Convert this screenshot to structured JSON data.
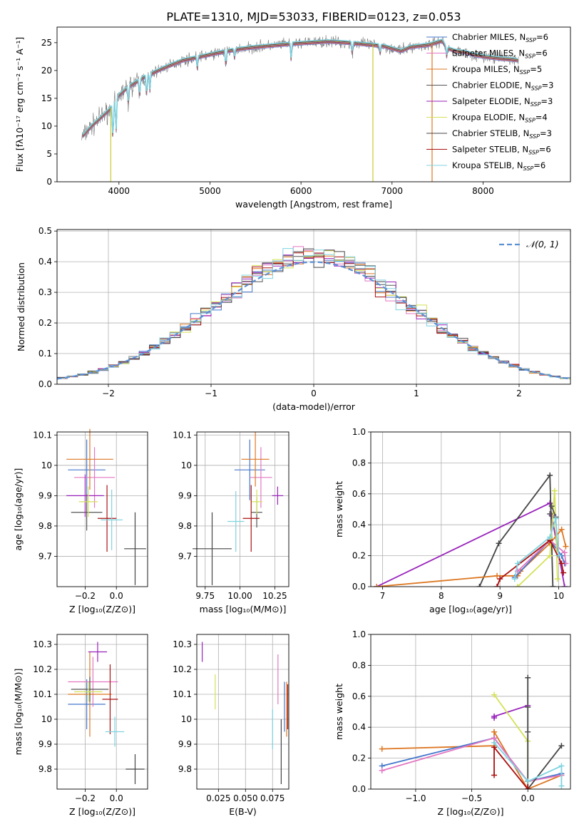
{
  "title": "PLATE=1310, MJD=53033, FIBERID=0123, z=0.053",
  "colors": {
    "Chabrier MILES": "#4477cc",
    "Salpeter MILES": "#e377c2",
    "Kroupa MILES": "#dd7722",
    "Chabrier ELODIE": "#555555",
    "Salpeter ELODIE": "#9922bb",
    "Kroupa ELODIE": "#d4e157",
    "Chabrier STELIB": "#444444",
    "Salpeter STELIB": "#aa1111",
    "Kroupa STELIB": "#7fd3e0",
    "normal": "#5b8fd6"
  },
  "chart_data": [
    {
      "id": "spectrum",
      "type": "line",
      "xlabel": "wavelength [Angstrom, rest frame]",
      "ylabel": "Flux [fλ10⁻¹⁷ erg cm⁻² s⁻¹ A⁻¹]",
      "xlim": [
        3320,
        8960
      ],
      "ylim": [
        0,
        27.8
      ],
      "xticks": [
        4000,
        5000,
        6000,
        7000,
        8000
      ],
      "yticks": [
        0,
        5,
        10,
        15,
        20,
        25
      ],
      "legend_position": "top-right",
      "continuum": [
        [
          3590,
          8
        ],
        [
          3700,
          10
        ],
        [
          3800,
          11.5
        ],
        [
          3900,
          13
        ],
        [
          4000,
          15.5
        ],
        [
          4100,
          17
        ],
        [
          4300,
          19
        ],
        [
          4500,
          20.5
        ],
        [
          4700,
          21.8
        ],
        [
          4900,
          22.5
        ],
        [
          5100,
          23.2
        ],
        [
          5300,
          23.8
        ],
        [
          5500,
          24.2
        ],
        [
          5700,
          24.5
        ],
        [
          5900,
          24.8
        ],
        [
          6100,
          25
        ],
        [
          6300,
          25.2
        ],
        [
          6500,
          25
        ],
        [
          6700,
          24.7
        ],
        [
          6900,
          24.4
        ],
        [
          7100,
          23.5
        ],
        [
          7200,
          24.2
        ],
        [
          7400,
          24.6
        ],
        [
          7550,
          25.3
        ],
        [
          7600,
          24
        ],
        [
          7700,
          23.5
        ],
        [
          7800,
          23.3
        ],
        [
          7900,
          22.8
        ],
        [
          8000,
          22.5
        ],
        [
          8100,
          22.3
        ],
        [
          8200,
          22.1
        ],
        [
          8300,
          22
        ],
        [
          8390,
          21.8
        ]
      ],
      "series": [
        {
          "name": "Chabrier MILES, N",
          "sub": "SSP",
          "val": "=6"
        },
        {
          "name": "Salpeter MILES, N",
          "sub": "SSP",
          "val": "=6"
        },
        {
          "name": "Kroupa MILES, N",
          "sub": "SSP",
          "val": "=5"
        },
        {
          "name": "Chabrier ELODIE, N",
          "sub": "SSP",
          "val": "=3"
        },
        {
          "name": "Salpeter ELODIE, N",
          "sub": "SSP",
          "val": "=3"
        },
        {
          "name": "Kroupa ELODIE, N",
          "sub": "SSP",
          "val": "=4"
        },
        {
          "name": "Chabrier STELIB, N",
          "sub": "SSP",
          "val": "=3"
        },
        {
          "name": "Salpeter STELIB, N",
          "sub": "SSP",
          "val": "=6"
        },
        {
          "name": "Kroupa STELIB, N",
          "sub": "SSP",
          "val": "=6"
        }
      ]
    },
    {
      "id": "residuals",
      "type": "histogram",
      "xlabel": "(data-model)/error",
      "ylabel": "Normed distribution",
      "xlim": [
        -2.5,
        2.5
      ],
      "ylim": [
        0,
        0.505
      ],
      "xticks": [
        -2,
        -1,
        0,
        1,
        2
      ],
      "xticklabels": [
        "−2",
        "−1",
        "0",
        "1",
        "2"
      ],
      "yticks": [
        0,
        0.1,
        0.2,
        0.3,
        0.4,
        0.5
      ],
      "yticklabels": [
        "0.0",
        "0.1",
        "0.2",
        "0.3",
        "0.4",
        "0.5"
      ],
      "bin_width": 0.1,
      "legend": "𝒩(0, 1)",
      "legend_position": "top-right"
    },
    {
      "id": "age_vs_Z",
      "type": "errorbar",
      "xlabel": "Z [log₁₀(Z/Z⊙)]",
      "ylabel": "age  [log₁₀(age/yr)]",
      "xlim": [
        -0.38,
        0.2
      ],
      "ylim": [
        9.6,
        10.11
      ],
      "xticks": [
        -0.2,
        0.0
      ],
      "xticklabels": [
        "−0.2",
        "0.0"
      ],
      "yticks": [
        9.7,
        9.8,
        9.9,
        10.0,
        10.1
      ],
      "points": [
        {
          "series": "Chabrier MILES",
          "x": -0.19,
          "xerr": 0.12,
          "y": 9.985,
          "yerr": 0.1
        },
        {
          "series": "Salpeter MILES",
          "x": -0.14,
          "xerr": 0.13,
          "y": 9.96,
          "yerr": 0.1
        },
        {
          "series": "Kroupa MILES",
          "x": -0.17,
          "xerr": 0.15,
          "y": 10.02,
          "yerr": 0.1
        },
        {
          "series": "Chabrier ELODIE",
          "x": -0.19,
          "xerr": 0.1,
          "y": 9.845,
          "yerr": 0.06
        },
        {
          "series": "Salpeter ELODIE",
          "x": -0.2,
          "xerr": 0.12,
          "y": 9.9,
          "yerr": 0.07
        },
        {
          "series": "Kroupa ELODIE",
          "x": -0.18,
          "xerr": 0.06,
          "y": 9.88,
          "yerr": 0.05
        },
        {
          "series": "Chabrier STELIB",
          "x": 0.12,
          "xerr": 0.07,
          "y": 9.725,
          "yerr": 0.12
        },
        {
          "series": "Salpeter STELIB",
          "x": -0.06,
          "xerr": 0.06,
          "y": 9.825,
          "yerr": 0.11
        },
        {
          "series": "Kroupa STELIB",
          "x": -0.03,
          "xerr": 0.07,
          "y": 9.82,
          "yerr": 0.1
        }
      ]
    },
    {
      "id": "age_vs_mass",
      "type": "errorbar",
      "xlabel": "mass [log₁₀(M/M⊙)]",
      "ylabel": "",
      "xlim": [
        9.69,
        10.35
      ],
      "ylim": [
        9.6,
        10.11
      ],
      "xticks": [
        9.75,
        10.0,
        10.25
      ],
      "xticklabels": [
        "9.75",
        "10.00",
        "10.25"
      ],
      "yticks": [
        9.7,
        9.8,
        9.9,
        10.0,
        10.1
      ],
      "points": [
        {
          "series": "Chabrier MILES",
          "x": 10.07,
          "xerr": 0.11,
          "y": 9.985,
          "yerr": 0.1
        },
        {
          "series": "Salpeter MILES",
          "x": 10.15,
          "xerr": 0.08,
          "y": 9.96,
          "yerr": 0.1
        },
        {
          "series": "Kroupa MILES",
          "x": 10.11,
          "xerr": 0.1,
          "y": 10.02,
          "yerr": 0.09
        },
        {
          "series": "Chabrier ELODIE",
          "x": 10.12,
          "xerr": 0.04,
          "y": 9.845,
          "yerr": 0.05
        },
        {
          "series": "Salpeter ELODIE",
          "x": 10.27,
          "xerr": 0.04,
          "y": 9.9,
          "yerr": 0.03
        },
        {
          "series": "Kroupa ELODIE",
          "x": 10.12,
          "xerr": 0.04,
          "y": 9.88,
          "yerr": 0.04
        },
        {
          "series": "Chabrier STELIB",
          "x": 9.8,
          "xerr": 0.14,
          "y": 9.725,
          "yerr": 0.12
        },
        {
          "series": "Salpeter STELIB",
          "x": 10.08,
          "xerr": 0.06,
          "y": 9.825,
          "yerr": 0.11
        },
        {
          "series": "Kroupa STELIB",
          "x": 9.97,
          "xerr": 0.06,
          "y": 9.815,
          "yerr": 0.1
        }
      ]
    },
    {
      "id": "mass_weight_vs_age",
      "type": "line",
      "xlabel": "age  [log₁₀(age/yr)]",
      "ylabel": "mass weight",
      "xlim": [
        6.8,
        10.2
      ],
      "ylim": [
        0,
        1
      ],
      "xticks": [
        7,
        8,
        9,
        10
      ],
      "yticks": [
        0,
        0.2,
        0.4,
        0.6,
        0.8,
        1.0
      ],
      "yticklabels": [
        "0.0",
        "0.2",
        "0.4",
        "0.6",
        "0.8",
        "1.0"
      ],
      "series": [
        {
          "series": "Salpeter ELODIE",
          "points": [
            [
              6.9,
              0
            ],
            [
              9.85,
              0.54
            ],
            [
              9.88,
              0.46
            ],
            [
              10.1,
              0
            ]
          ]
        },
        {
          "series": "Chabrier STELIB",
          "points": [
            [
              8.65,
              0
            ],
            [
              8.98,
              0.28
            ],
            [
              9.85,
              0.72
            ],
            [
              9.9,
              0
            ]
          ]
        },
        {
          "series": "Kroupa MILES",
          "points": [
            [
              6.9,
              0
            ],
            [
              8.95,
              0.07
            ],
            [
              9.3,
              0.07
            ],
            [
              9.35,
              0.1
            ],
            [
              9.85,
              0.28
            ],
            [
              10.05,
              0.37
            ],
            [
              10.12,
              0.26
            ]
          ]
        },
        {
          "series": "Chabrier MILES",
          "points": [
            [
              9.25,
              0.06
            ],
            [
              9.85,
              0.3
            ],
            [
              10.05,
              0.2
            ],
            [
              10.1,
              0.15
            ]
          ]
        },
        {
          "series": "Salpeter MILES",
          "points": [
            [
              9.3,
              0.1
            ],
            [
              9.85,
              0.3
            ],
            [
              10.1,
              0.22
            ],
            [
              10.12,
              0.15
            ]
          ]
        },
        {
          "series": "Kroupa ELODIE",
          "points": [
            [
              9.3,
              0
            ],
            [
              9.85,
              0.2
            ],
            [
              9.93,
              0.62
            ],
            [
              9.98,
              0.05
            ]
          ]
        },
        {
          "series": "Chabrier ELODIE",
          "points": [
            [
              9.85,
              0.47
            ],
            [
              9.88,
              0.52
            ],
            [
              9.95,
              0.45
            ]
          ]
        },
        {
          "series": "Salpeter STELIB",
          "points": [
            [
              8.95,
              0
            ],
            [
              9.0,
              0.05
            ],
            [
              9.85,
              0.3
            ],
            [
              10.05,
              0.15
            ],
            [
              10.08,
              0.09
            ]
          ]
        },
        {
          "series": "Kroupa STELIB",
          "points": [
            [
              9.25,
              0.05
            ],
            [
              9.3,
              0.15
            ],
            [
              9.85,
              0.32
            ],
            [
              9.95,
              0.44
            ],
            [
              10.0,
              0.2
            ]
          ]
        }
      ]
    },
    {
      "id": "mass_vs_Z",
      "type": "errorbar",
      "xlabel": "Z [log₁₀(Z/Z⊙)]",
      "ylabel": "mass [log₁₀(M/M⊙)]",
      "xlim": [
        -0.38,
        0.2
      ],
      "ylim": [
        9.72,
        10.34
      ],
      "xticks": [
        -0.2,
        0.0
      ],
      "xticklabels": [
        "−0.2",
        "0.0"
      ],
      "yticks": [
        9.8,
        9.9,
        10.0,
        10.1,
        10.2,
        10.3
      ],
      "points": [
        {
          "series": "Chabrier MILES",
          "x": -0.19,
          "xerr": 0.12,
          "y": 10.06,
          "yerr": 0.1
        },
        {
          "series": "Salpeter MILES",
          "x": -0.15,
          "xerr": 0.16,
          "y": 10.15,
          "yerr": 0.1
        },
        {
          "series": "Kroupa MILES",
          "x": -0.17,
          "xerr": 0.14,
          "y": 10.1,
          "yerr": 0.17
        },
        {
          "series": "Chabrier ELODIE",
          "x": -0.17,
          "xerr": 0.12,
          "y": 10.12,
          "yerr": 0.05
        },
        {
          "series": "Salpeter ELODIE",
          "x": -0.12,
          "xerr": 0.06,
          "y": 10.27,
          "yerr": 0.04
        },
        {
          "series": "Kroupa ELODIE",
          "x": -0.18,
          "xerr": 0.09,
          "y": 10.11,
          "yerr": 0.04
        },
        {
          "series": "Chabrier STELIB",
          "x": 0.12,
          "xerr": 0.06,
          "y": 9.8,
          "yerr": 0.06
        },
        {
          "series": "Salpeter STELIB",
          "x": -0.04,
          "xerr": 0.05,
          "y": 10.08,
          "yerr": 0.14
        },
        {
          "series": "Kroupa STELIB",
          "x": -0.01,
          "xerr": 0.06,
          "y": 9.95,
          "yerr": 0.06
        }
      ]
    },
    {
      "id": "mass_vs_ebv",
      "type": "errorbar",
      "xlabel": "E(B-V)",
      "ylabel": "",
      "xlim": [
        0.005,
        0.09
      ],
      "ylim": [
        9.72,
        10.34
      ],
      "xticks": [
        0.025,
        0.05,
        0.075
      ],
      "xticklabels": [
        "0.025",
        "0.050",
        "0.075"
      ],
      "yticks": [
        9.8,
        9.9,
        10.0,
        10.1,
        10.2,
        10.3
      ],
      "points": [
        {
          "series": "Salpeter ELODIE",
          "x": 0.01,
          "xerr": 0,
          "y": 10.27,
          "yerr": 0.04
        },
        {
          "series": "Kroupa ELODIE",
          "x": 0.022,
          "xerr": 0,
          "y": 10.11,
          "yerr": 0.07
        },
        {
          "series": "Kroupa STELIB",
          "x": 0.075,
          "xerr": 0,
          "y": 9.96,
          "yerr": 0.08
        },
        {
          "series": "Salpeter MILES",
          "x": 0.08,
          "xerr": 0,
          "y": 10.16,
          "yerr": 0.1
        },
        {
          "series": "Chabrier STELIB",
          "x": 0.083,
          "xerr": 0,
          "y": 9.87,
          "yerr": 0.13
        },
        {
          "series": "Chabrier MILES",
          "x": 0.086,
          "xerr": 0,
          "y": 10.05,
          "yerr": 0.1
        },
        {
          "series": "Kroupa MILES",
          "x": 0.088,
          "xerr": 0,
          "y": 10.04,
          "yerr": 0.11
        },
        {
          "series": "Salpeter STELIB",
          "x": 0.089,
          "xerr": 0,
          "y": 10.05,
          "yerr": 0.09
        }
      ]
    },
    {
      "id": "mass_weight_vs_Z",
      "type": "line",
      "xlabel": "Z [log₁₀(Z/Z⊙)]",
      "ylabel": "mass weight",
      "xlim": [
        -1.4,
        0.38
      ],
      "ylim": [
        0,
        1
      ],
      "xticks": [
        -1.0,
        -0.5,
        0.0
      ],
      "xticklabels": [
        "−1.0",
        "−0.5",
        "0.0"
      ],
      "yticks": [
        0,
        0.2,
        0.4,
        0.6,
        0.8,
        1.0
      ],
      "yticklabels": [
        "0.0",
        "0.2",
        "0.4",
        "0.6",
        "0.8",
        "1.0"
      ],
      "series": [
        {
          "series": "Kroupa MILES",
          "points": [
            [
              -1.3,
              0.26
            ],
            [
              -0.3,
              0.28
            ],
            [
              -0.3,
              0.37
            ],
            [
              0.0,
              0.0
            ],
            [
              0.3,
              0.09
            ]
          ]
        },
        {
          "series": "Chabrier MILES",
          "points": [
            [
              -1.3,
              0.15
            ],
            [
              -0.3,
              0.33
            ],
            [
              0.0,
              0.05
            ],
            [
              0.3,
              0.1
            ]
          ]
        },
        {
          "series": "Salpeter MILES",
          "points": [
            [
              -1.3,
              0.12
            ],
            [
              -0.3,
              0.33
            ],
            [
              0.0,
              0.05
            ],
            [
              0.3,
              0.09
            ]
          ]
        },
        {
          "series": "Salpeter ELODIE",
          "points": [
            [
              -0.3,
              0.46
            ],
            [
              -0.3,
              0.47
            ],
            [
              0.0,
              0.54
            ]
          ]
        },
        {
          "series": "Kroupa ELODIE",
          "points": [
            [
              -0.3,
              0.61
            ],
            [
              0.0,
              0.31
            ],
            [
              0.0,
              0.05
            ]
          ]
        },
        {
          "series": "Chabrier STELIB",
          "points": [
            [
              0.0,
              0.72
            ],
            [
              0.0,
              0.0
            ],
            [
              0.3,
              0.28
            ]
          ]
        },
        {
          "series": "Salpeter STELIB",
          "points": [
            [
              -0.3,
              0.09
            ],
            [
              -0.3,
              0.27
            ],
            [
              0.0,
              0.0
            ],
            [
              0.0,
              0.05
            ]
          ]
        },
        {
          "series": "Kroupa STELIB",
          "points": [
            [
              -0.3,
              0.3
            ],
            [
              0.0,
              0.05
            ],
            [
              0.3,
              0.15
            ],
            [
              0.3,
              0.02
            ]
          ]
        },
        {
          "series": "Chabrier ELODIE",
          "points": [
            [
              0.0,
              0.37
            ],
            [
              0.0,
              0.53
            ]
          ]
        }
      ]
    }
  ]
}
